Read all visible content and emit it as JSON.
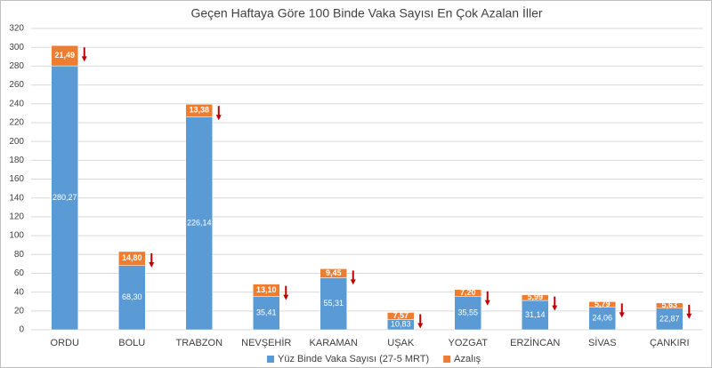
{
  "chart_data": {
    "type": "stacked-bar",
    "title": "Geçen Haftaya Göre 100 Binde Vaka Sayısı En Çok Azalan İller",
    "categories": [
      "ORDU",
      "BOLU",
      "TRABZON",
      "NEVŞEHİR",
      "KARAMAN",
      "UŞAK",
      "YOZGAT",
      "ERZİNCAN",
      "SİVAS",
      "ÇANKIRI"
    ],
    "series": [
      {
        "name": "Yüz Binde Vaka Sayısı (27-5 MRT)",
        "color": "#5b9bd5",
        "values": [
          280.27,
          68.3,
          226.14,
          35.41,
          55.31,
          10.83,
          35.55,
          31.14,
          24.06,
          22.87
        ],
        "value_labels": [
          "280,27",
          "68,30",
          "226,14",
          "35,41",
          "55,31",
          "10,83",
          "35,55",
          "31,14",
          "24,06",
          "22,87"
        ]
      },
      {
        "name": "Azalış",
        "color": "#ed7d31",
        "values": [
          21.49,
          14.8,
          13.38,
          13.1,
          9.45,
          7.57,
          7.2,
          5.99,
          5.79,
          5.63
        ],
        "value_labels": [
          "21,49",
          "14,80",
          "13,38",
          "13,10",
          "9,45",
          "7,57",
          "7,20",
          "5,99",
          "5,79",
          "5,63"
        ]
      }
    ],
    "ylim": [
      0,
      320
    ],
    "yticks": [
      0,
      20,
      40,
      60,
      80,
      100,
      120,
      140,
      160,
      180,
      200,
      220,
      240,
      260,
      280,
      300,
      320
    ],
    "grid": true
  }
}
